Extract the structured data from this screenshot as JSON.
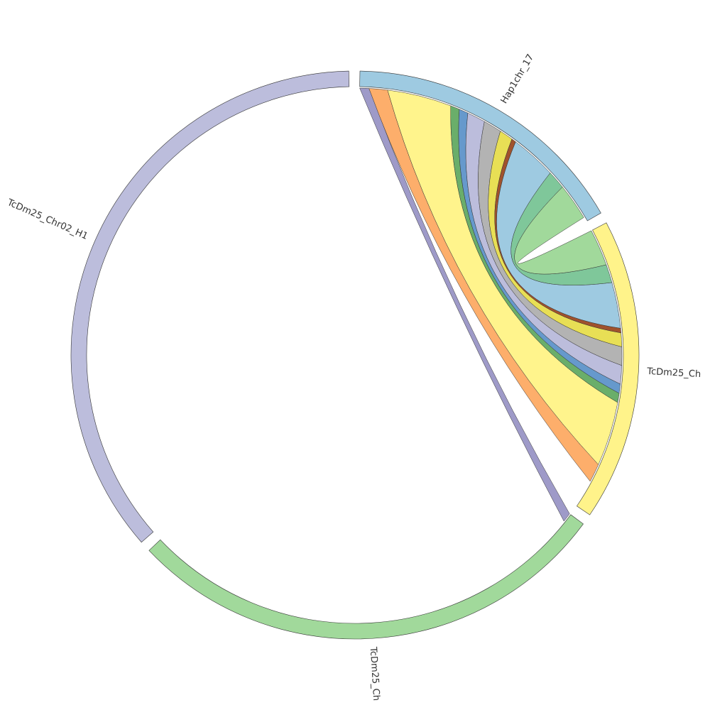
{
  "chart_data": {
    "type": "chord",
    "sectors": [
      {
        "name": "Hap1chr_17",
        "value": 59,
        "color": "#9ecae1"
      },
      {
        "name": "TcDm25_Ch",
        "value": 62,
        "color": "#fff38a"
      },
      {
        "name": "TcDm25_Ch",
        "value": 100,
        "color": "#a1d99b"
      },
      {
        "name": "TcDm25_Chr02_H1",
        "value": 130,
        "color": "#bcbddc"
      }
    ],
    "links": [
      {
        "source": 0,
        "target": 2,
        "value": 2,
        "color": "#9e9ac8"
      },
      {
        "source": 0,
        "target": 1,
        "value": 4,
        "color": "#fdae6b"
      },
      {
        "source": 0,
        "target": 1,
        "value": 14,
        "color": "#fff48c"
      },
      {
        "source": 0,
        "target": 1,
        "value": 2,
        "color": "#6aae6a"
      },
      {
        "source": 0,
        "target": 1,
        "value": 2,
        "color": "#6699cc"
      },
      {
        "source": 0,
        "target": 1,
        "value": 4,
        "color": "#bcbddc"
      },
      {
        "source": 0,
        "target": 1,
        "value": 4,
        "color": "#b3b3b3"
      },
      {
        "source": 0,
        "target": 1,
        "value": 3,
        "color": "#e8df55"
      },
      {
        "source": 0,
        "target": 1,
        "value": 1,
        "color": "#a0522d"
      },
      {
        "source": 0,
        "target": 1,
        "value": 10,
        "color": "#9ecae1"
      },
      {
        "source": 0,
        "target": 1,
        "value": 4,
        "color": "#7fc79a"
      },
      {
        "source": 0,
        "target": 1,
        "value": 8,
        "color": "#a1d99b"
      }
    ]
  }
}
